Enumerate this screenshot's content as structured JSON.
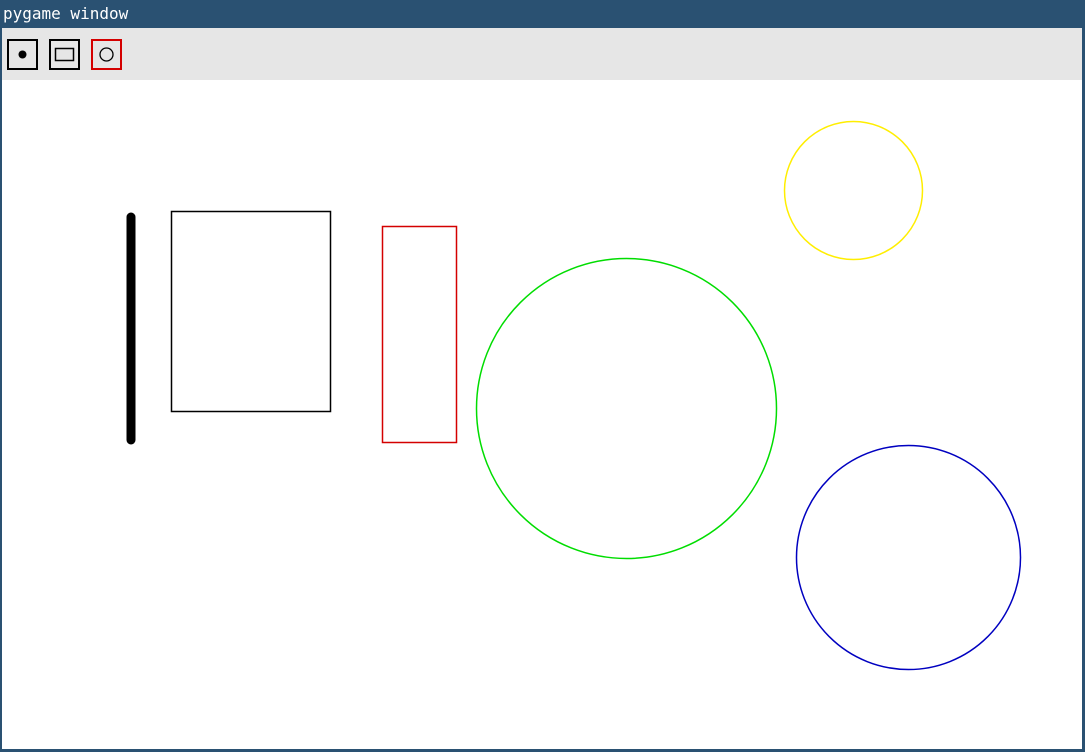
{
  "window": {
    "title": "pygame window"
  },
  "toolbar": {
    "tools": [
      {
        "name": "brush",
        "icon": "dot-brush-icon",
        "selected": false
      },
      {
        "name": "rectangle",
        "icon": "rectangle-icon",
        "selected": false
      },
      {
        "name": "circle",
        "icon": "circle-icon",
        "selected": true
      }
    ],
    "selected_color": "#d40000",
    "border_color": "#000000",
    "background": "#e6e6e6"
  },
  "canvas": {
    "background": "#ffffff",
    "shapes": [
      {
        "type": "line",
        "color": "#000000"
      },
      {
        "type": "rectangle",
        "color": "#000000"
      },
      {
        "type": "rectangle",
        "color": "#d40000"
      },
      {
        "type": "circle",
        "color": "#00dd00"
      },
      {
        "type": "circle",
        "color": "#ffee00"
      },
      {
        "type": "circle",
        "color": "#0000c0"
      }
    ]
  }
}
